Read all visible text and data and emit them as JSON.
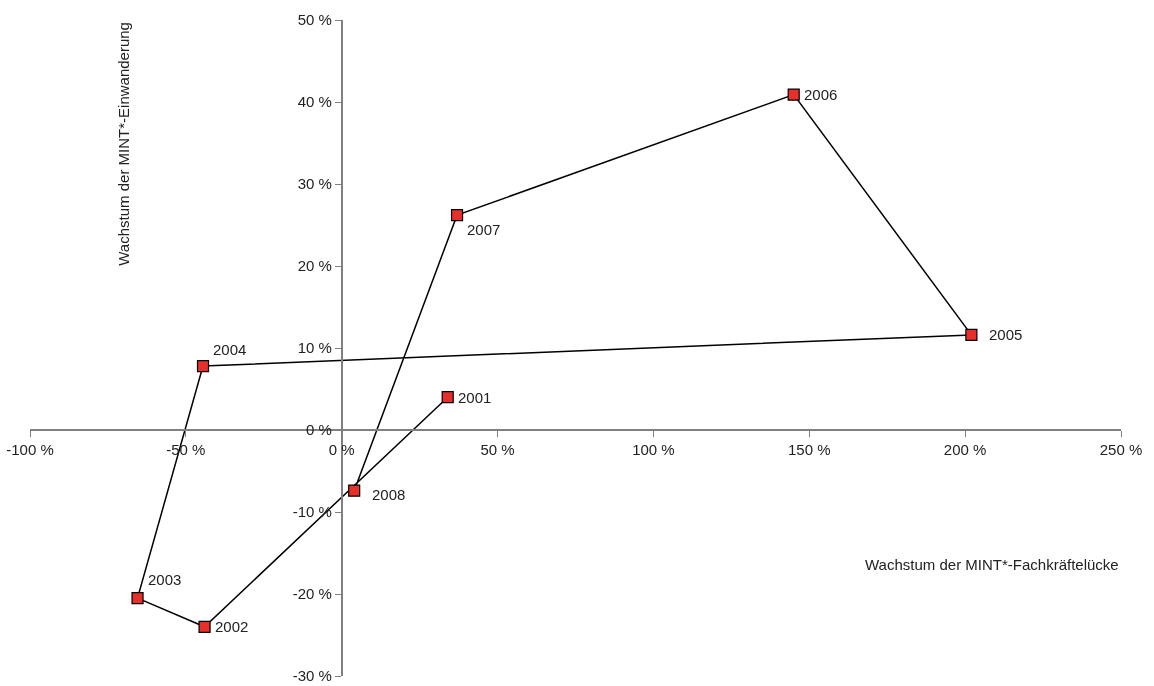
{
  "chart_data": {
    "type": "line",
    "xlabel": "Wachstum der MINT*-Fachkräftelücke",
    "ylabel": "Wachstum der MINT*-Einwanderung",
    "x": [
      34,
      -44,
      -65.5,
      -44.5,
      202,
      145,
      37,
      4
    ],
    "series": [
      {
        "color": "#e8302a",
        "values": [
          4,
          -24,
          -20.5,
          7.8,
          11.6,
          40.9,
          26.2,
          -7.4
        ]
      }
    ],
    "marker": "square",
    "line_style": "solid",
    "annotations": [
      {
        "text": "2001",
        "x": 34,
        "y": 4
      },
      {
        "text": "2002",
        "x": -44,
        "y": -24
      },
      {
        "text": "2003",
        "x": -65.5,
        "y": -20.5
      },
      {
        "text": "2004",
        "x": -44.5,
        "y": 7.8
      },
      {
        "text": "2005",
        "x": 202,
        "y": 11.6
      },
      {
        "text": "2006",
        "x": 145,
        "y": 40.9
      },
      {
        "text": "2007",
        "x": 37,
        "y": 26.2
      },
      {
        "text": "2008",
        "x": 4,
        "y": -7.4
      }
    ],
    "xlim": [
      -100,
      250
    ],
    "xticks": [
      {
        "value": -100,
        "label": "-100 %"
      },
      {
        "value": -50,
        "label": "-50 %"
      },
      {
        "value": 0,
        "label": "0 %"
      },
      {
        "value": 50,
        "label": "50 %"
      },
      {
        "value": 100,
        "label": "100 %"
      },
      {
        "value": 150,
        "label": "150 %"
      },
      {
        "value": 200,
        "label": "200 %"
      },
      {
        "value": 250,
        "label": "250 %"
      }
    ],
    "ylim": [
      -30,
      50
    ],
    "yticks": [
      {
        "value": -30,
        "label": "-30 %"
      },
      {
        "value": -20,
        "label": "-20 %"
      },
      {
        "value": -10,
        "label": "-10 %"
      },
      {
        "value": 0,
        "label": "0 %"
      },
      {
        "value": 10,
        "label": "10 %"
      },
      {
        "value": 20,
        "label": "20 %"
      },
      {
        "value": 30,
        "label": "30 %"
      },
      {
        "value": 40,
        "label": "40 %"
      },
      {
        "value": 50,
        "label": "50 %"
      }
    ]
  }
}
